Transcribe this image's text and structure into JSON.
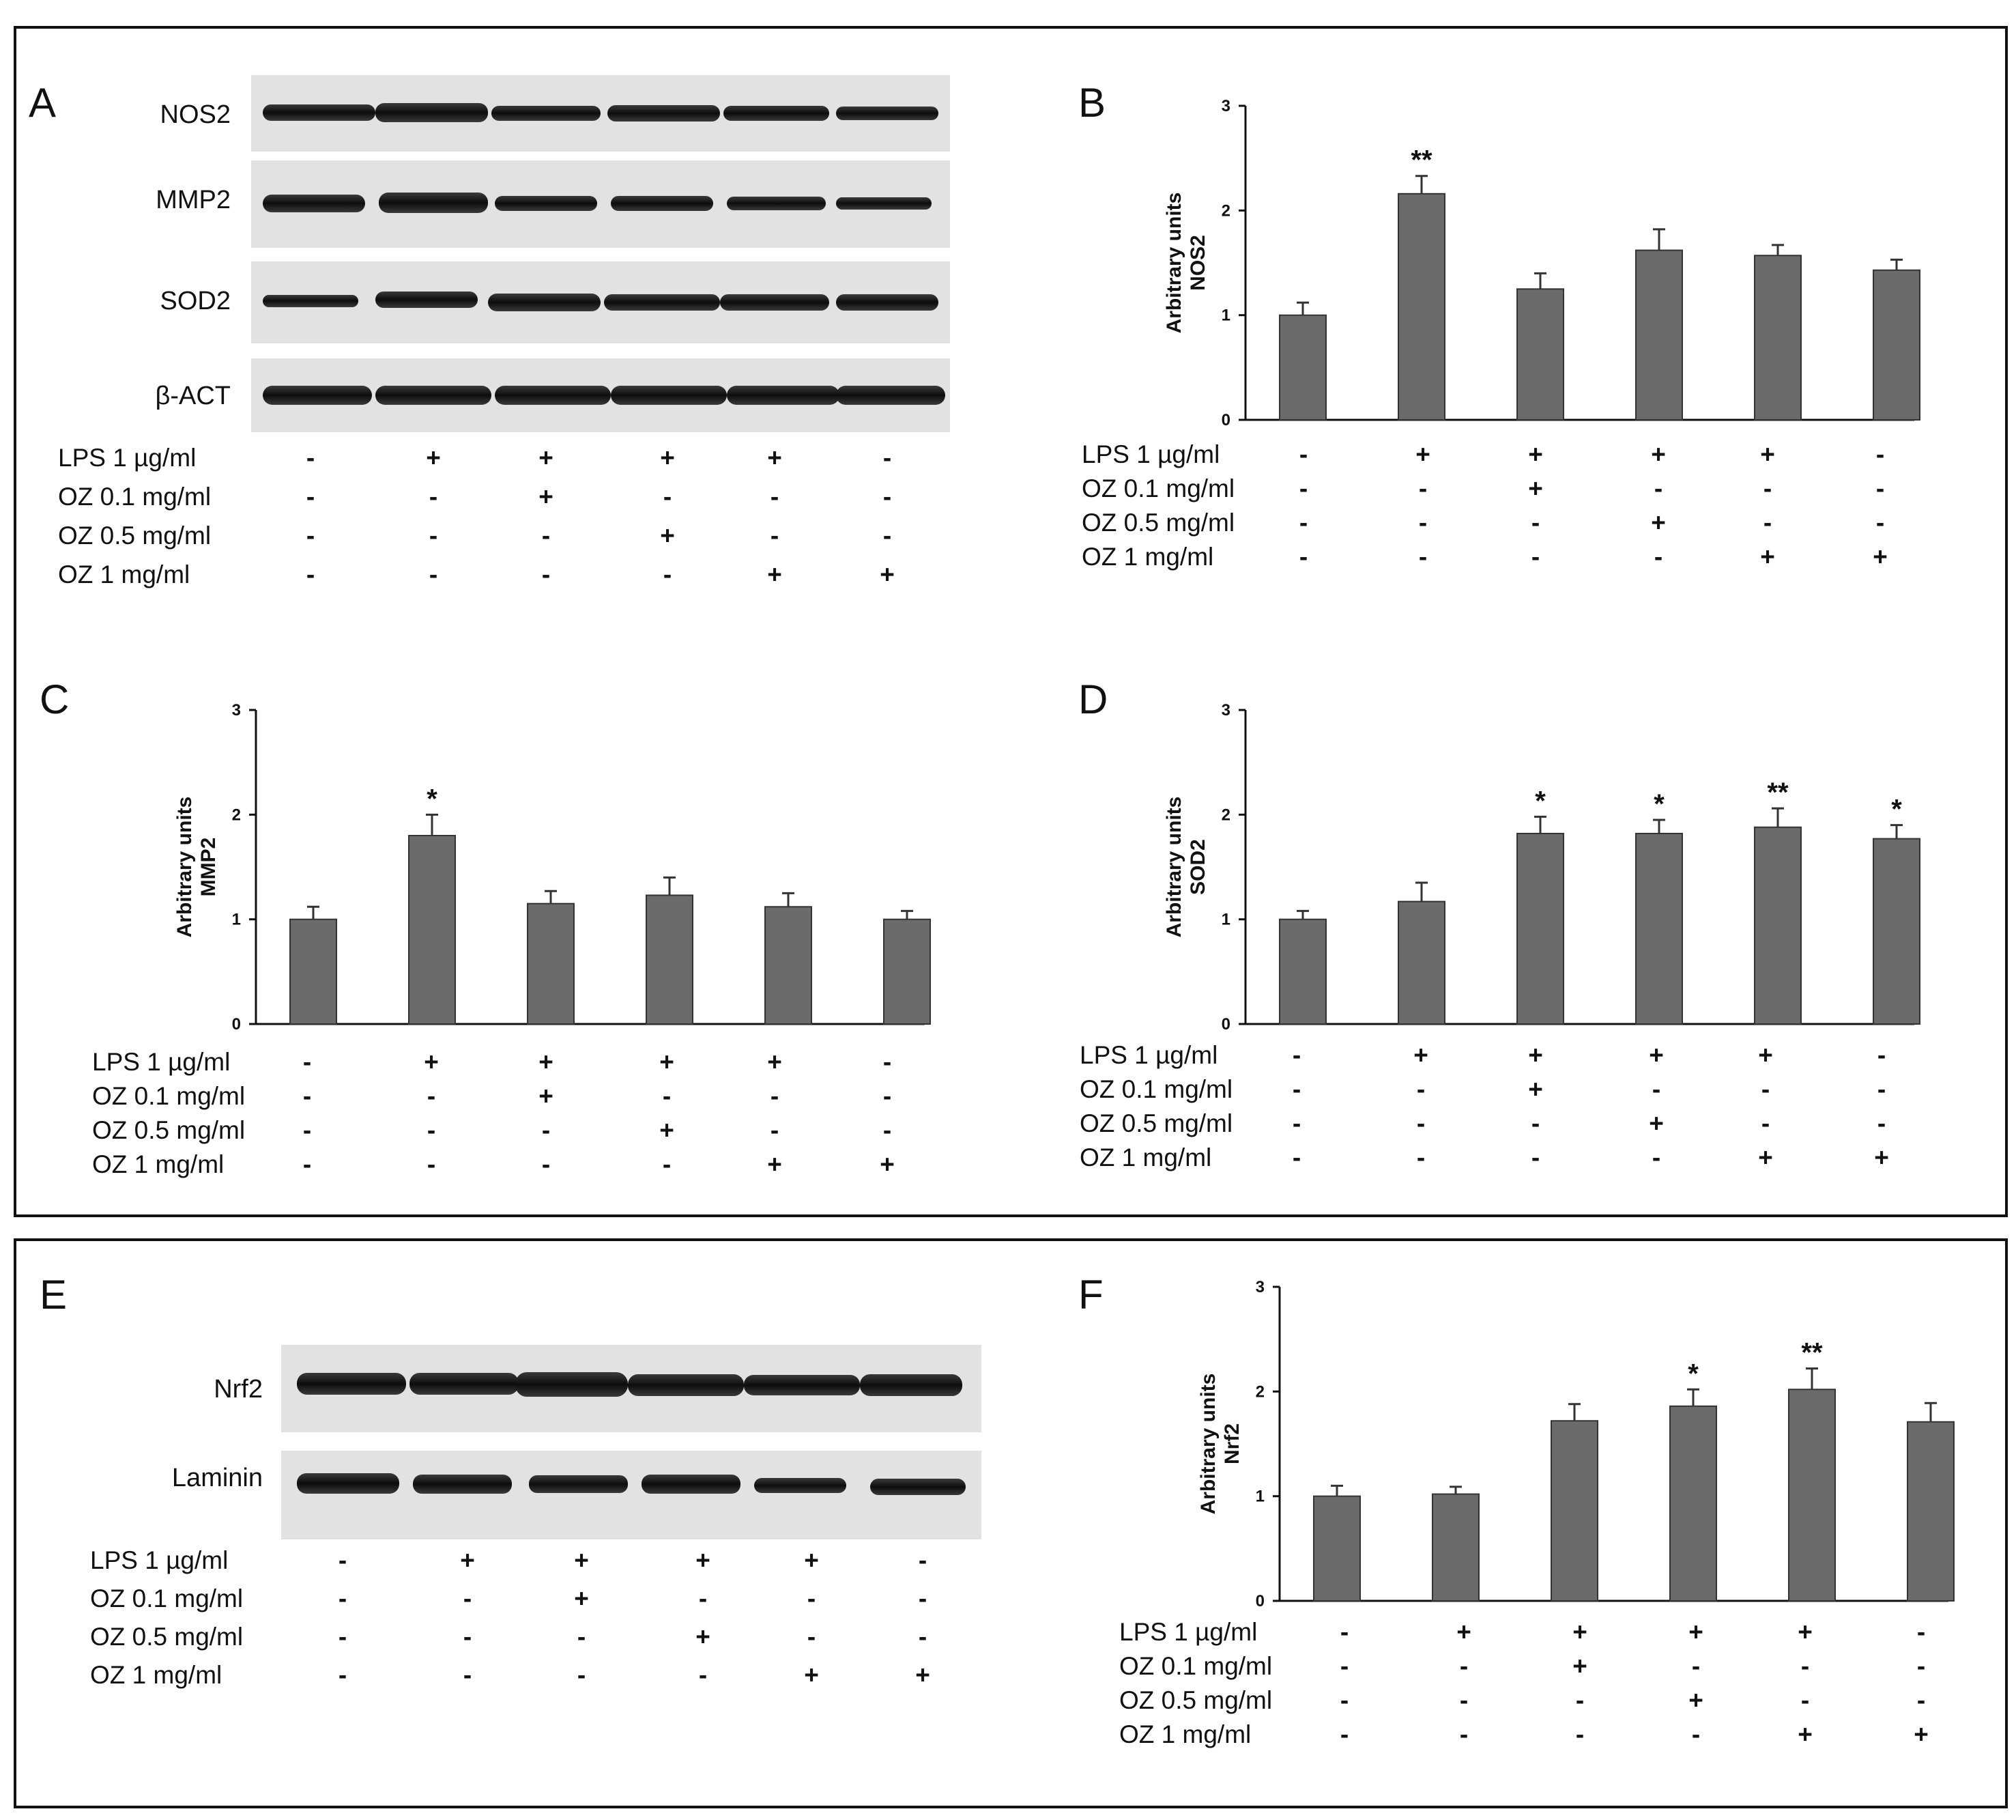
{
  "panels": {
    "A": "A",
    "B": "B",
    "C": "C",
    "D": "D",
    "E": "E",
    "F": "F"
  },
  "blot_labels": {
    "nos2": "NOS2",
    "mmp2": "MMP2",
    "sod2": "SOD2",
    "bact": "β-ACT",
    "nrf2": "Nrf2",
    "laminin": "Laminin"
  },
  "treatment_rows": [
    {
      "label": "LPS 1 µg/ml",
      "marks": [
        "-",
        "+",
        "+",
        "+",
        "+",
        "-"
      ]
    },
    {
      "label": "OZ 0.1 mg/ml",
      "marks": [
        "-",
        "-",
        "+",
        "-",
        "-",
        "-"
      ]
    },
    {
      "label": "OZ 0.5 mg/ml",
      "marks": [
        "-",
        "-",
        "-",
        "+",
        "-",
        "-"
      ]
    },
    {
      "label": "OZ 1 mg/ml",
      "marks": [
        "-",
        "-",
        "-",
        "-",
        "+",
        "+"
      ]
    }
  ],
  "chart_data": [
    {
      "panel": "B",
      "type": "bar",
      "ylabel": "Arbitrary units",
      "ylabel2": "NOS2",
      "ylim": [
        0,
        3
      ],
      "yticks": [
        "0",
        "1",
        "2",
        "3"
      ],
      "bar_color": "#6b6b6b",
      "values": [
        1.0,
        2.16,
        1.25,
        1.62,
        1.57,
        1.43
      ],
      "errors": [
        0.12,
        0.17,
        0.15,
        0.2,
        0.1,
        0.1
      ],
      "annotations": [
        "",
        "**",
        "",
        "",
        "",
        ""
      ]
    },
    {
      "panel": "C",
      "type": "bar",
      "ylabel": "Arbitrary units",
      "ylabel2": "MMP2",
      "ylim": [
        0,
        3
      ],
      "yticks": [
        "0",
        "1",
        "2",
        "3"
      ],
      "bar_color": "#6b6b6b",
      "values": [
        1.0,
        1.8,
        1.15,
        1.23,
        1.12,
        1.0
      ],
      "errors": [
        0.12,
        0.2,
        0.12,
        0.17,
        0.13,
        0.08
      ],
      "annotations": [
        "",
        "*",
        "",
        "",
        "",
        ""
      ]
    },
    {
      "panel": "D",
      "type": "bar",
      "ylabel": "Arbitrary units",
      "ylabel2": "SOD2",
      "ylim": [
        0,
        3
      ],
      "yticks": [
        "0",
        "1",
        "2",
        "3"
      ],
      "bar_color": "#6b6b6b",
      "values": [
        1.0,
        1.17,
        1.82,
        1.82,
        1.88,
        1.77
      ],
      "errors": [
        0.08,
        0.18,
        0.16,
        0.13,
        0.18,
        0.13
      ],
      "annotations": [
        "",
        "",
        "*",
        "*",
        "**",
        "*"
      ]
    },
    {
      "panel": "F",
      "type": "bar",
      "ylabel": "Arbitrary units",
      "ylabel2": "Nrf2",
      "ylim": [
        0,
        3
      ],
      "yticks": [
        "0",
        "1",
        "2",
        "3"
      ],
      "bar_color": "#6b6b6b",
      "values": [
        1.0,
        1.02,
        1.72,
        1.86,
        2.02,
        1.71
      ],
      "errors": [
        0.1,
        0.07,
        0.16,
        0.16,
        0.2,
        0.18
      ],
      "annotations": [
        "",
        "",
        "",
        "*",
        "**",
        ""
      ]
    }
  ]
}
